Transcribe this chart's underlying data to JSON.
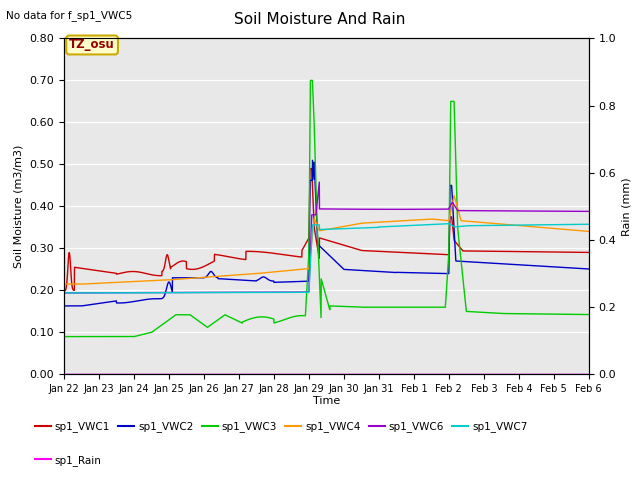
{
  "title": "Soil Moisture And Rain",
  "subtitle": "No data for f_sp1_VWC5",
  "xlabel": "Time",
  "ylabel_left": "Soil Moisture (m3/m3)",
  "ylabel_right": "Rain (mm)",
  "ylim_left": [
    0.0,
    0.8
  ],
  "ylim_right": [
    0.0,
    1.0
  ],
  "background_color": "#e8e8e8",
  "fig_background": "#ffffff",
  "timezone_label": "TZ_osu",
  "series": {
    "sp1_VWC1": {
      "color": "#cc0000",
      "label": "sp1_VWC1"
    },
    "sp1_VWC2": {
      "color": "#0000cc",
      "label": "sp1_VWC2"
    },
    "sp1_VWC3": {
      "color": "#00cc00",
      "label": "sp1_VWC3"
    },
    "sp1_VWC4": {
      "color": "#ff9900",
      "label": "sp1_VWC4"
    },
    "sp1_VWC6": {
      "color": "#9900cc",
      "label": "sp1_VWC6"
    },
    "sp1_VWC7": {
      "color": "#00cccc",
      "label": "sp1_VWC7"
    },
    "sp1_Rain": {
      "color": "#ff00ff",
      "label": "sp1_Rain"
    }
  },
  "xtick_labels": [
    "Jan 22",
    "Jan 23",
    "Jan 24",
    "Jan 25",
    "Jan 26",
    "Jan 27",
    "Jan 28",
    "Jan 29",
    "Jan 30",
    "Jan 31",
    "Feb 1",
    "Feb 2",
    "Feb 3",
    "Feb 4",
    "Feb 5",
    "Feb 6"
  ],
  "ytick_left": [
    0.0,
    0.1,
    0.2,
    0.3,
    0.4,
    0.5,
    0.6,
    0.7,
    0.8
  ],
  "ytick_right": [
    0.0,
    0.2,
    0.4,
    0.6,
    0.8,
    1.0
  ],
  "num_days": 16
}
